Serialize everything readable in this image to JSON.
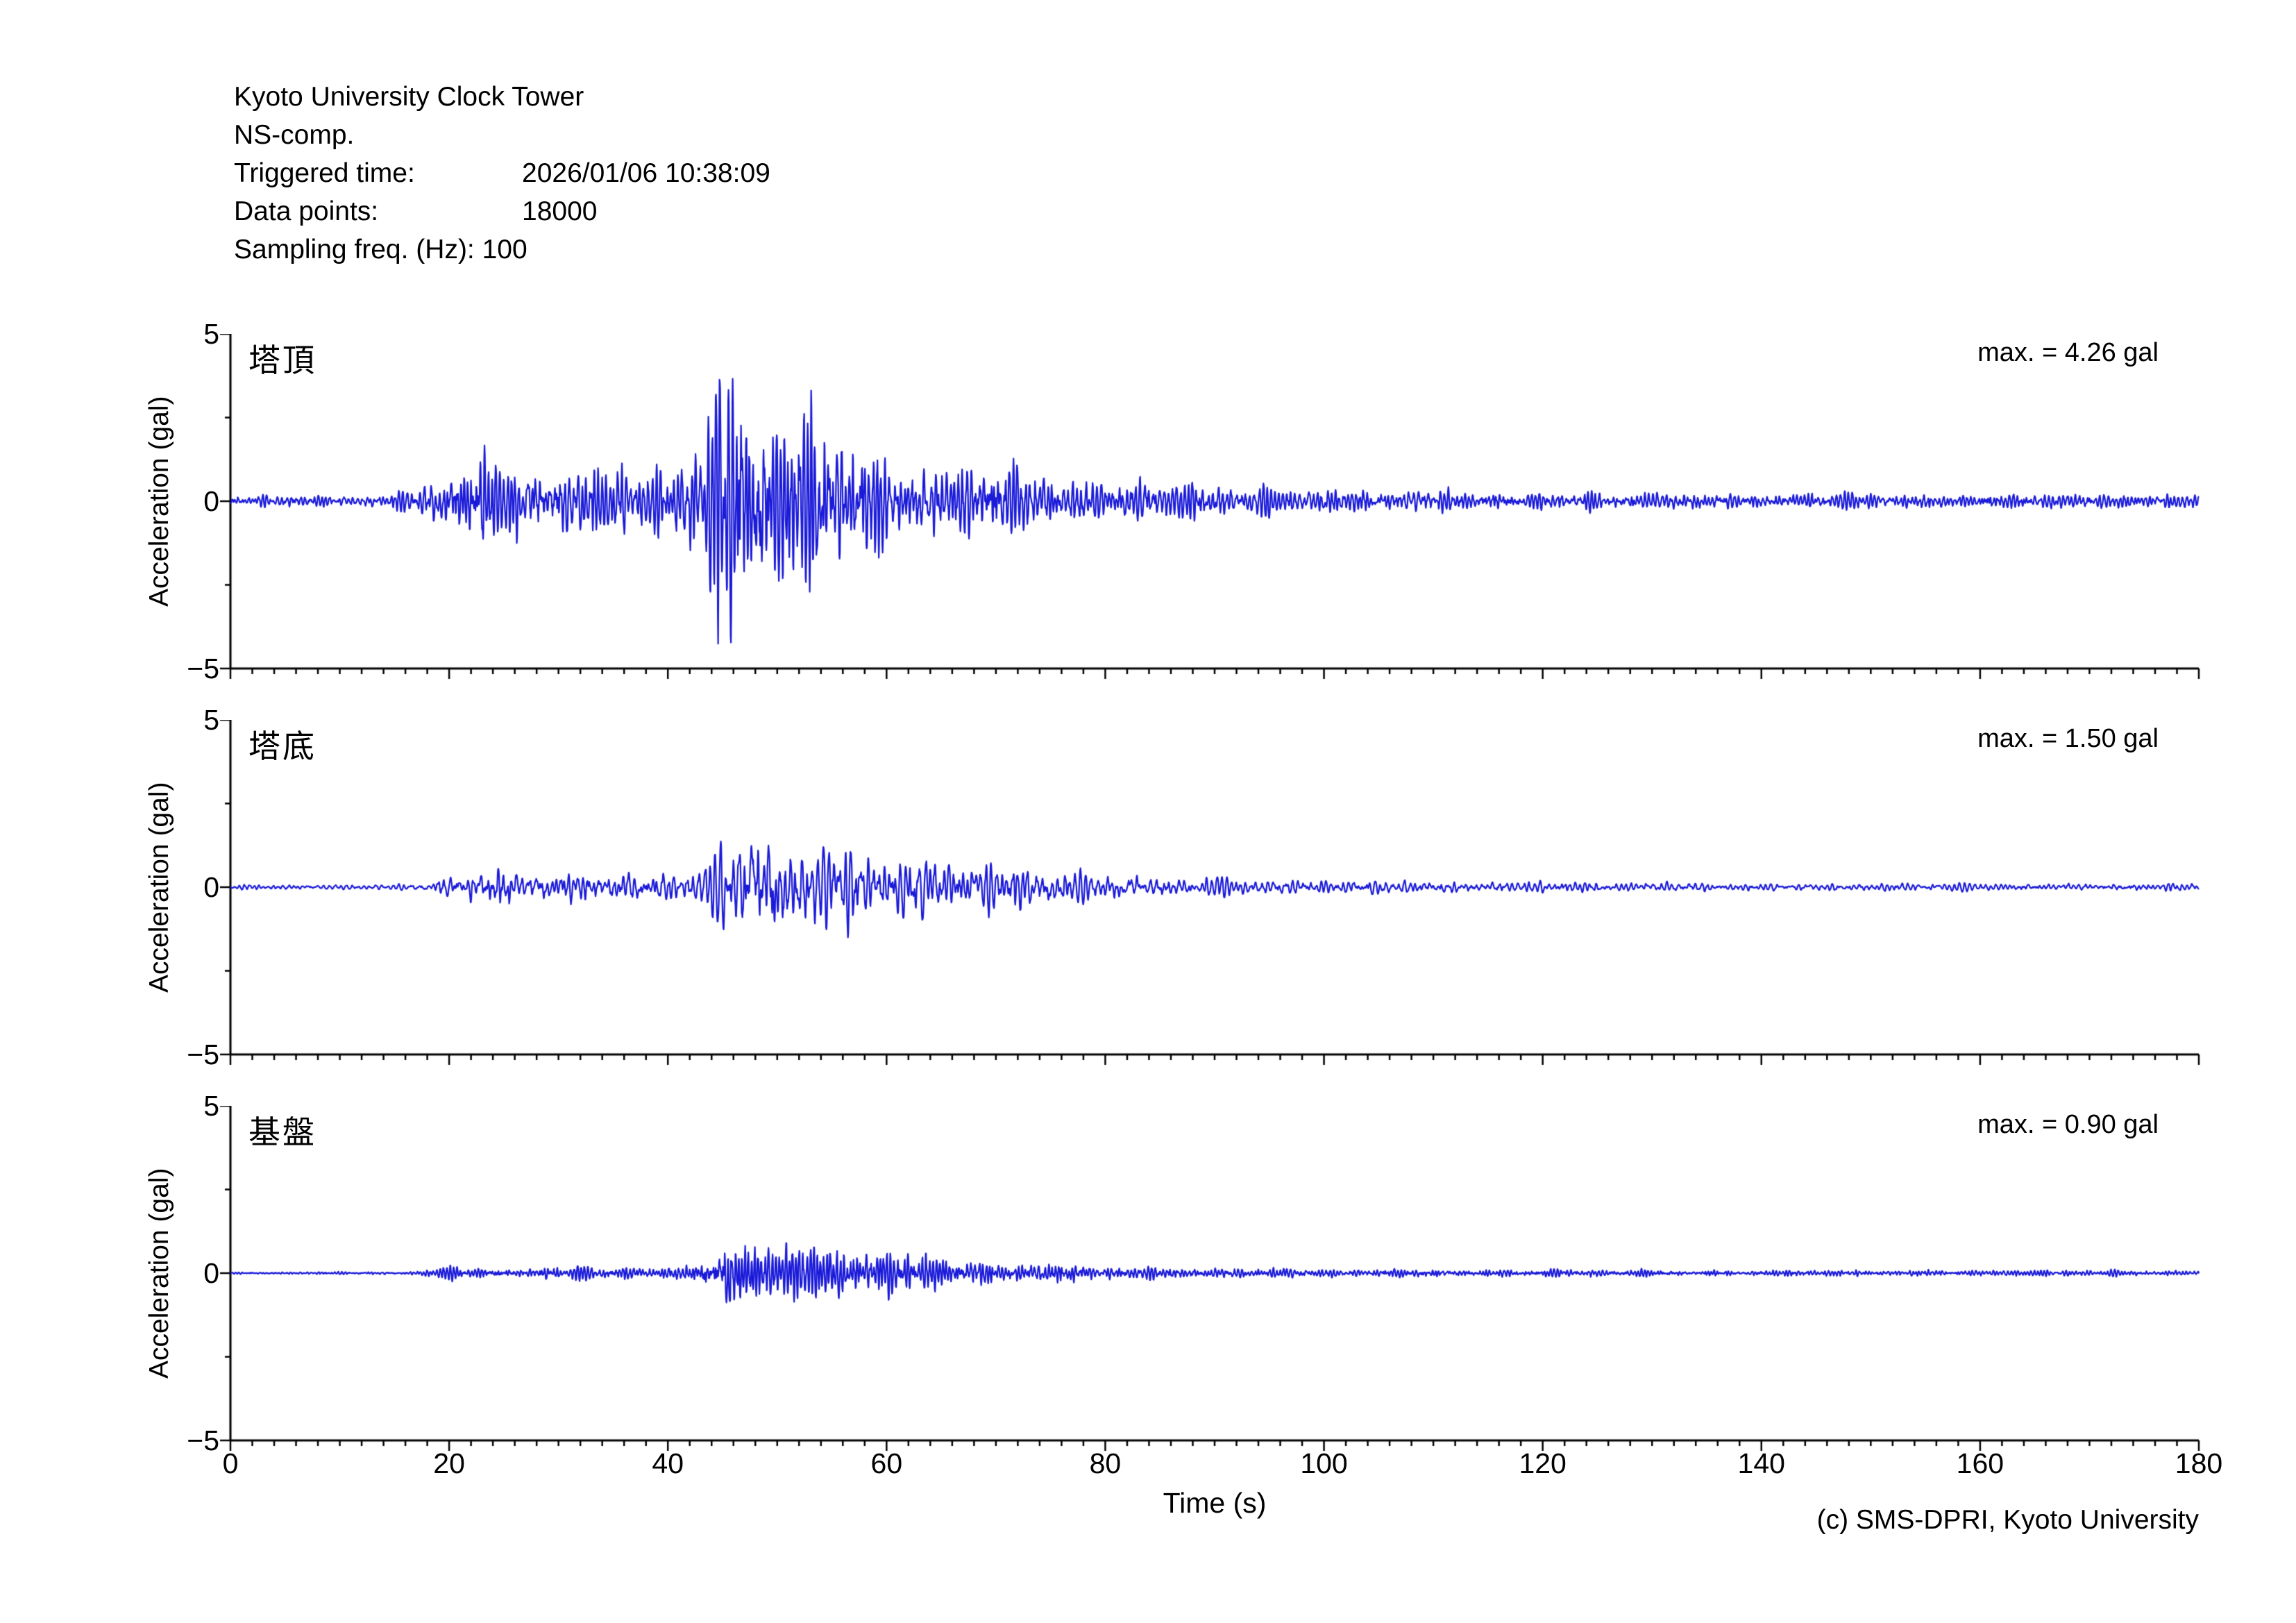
{
  "header": {
    "station": "Kyoto University Clock Tower",
    "component": "NS-comp.",
    "triggered_label": "Triggered time:",
    "triggered_value": "2026/01/06 10:38:09",
    "datapoints_label": "Data points:",
    "datapoints_value": "18000",
    "sampling_line": "Sampling freq. (Hz): 100"
  },
  "footer": {
    "copyright": "(c) SMS-DPRI, Kyoto University"
  },
  "chart_data": {
    "type": "line",
    "xlabel": "Time (s)",
    "ylabel": "Acceleration (gal)",
    "xlim": [
      0,
      180
    ],
    "ylim": [
      -5,
      5
    ],
    "xticks": [
      0,
      20,
      40,
      60,
      80,
      100,
      120,
      140,
      160,
      180
    ],
    "x_minor_step": 2,
    "yticks": [
      5,
      0,
      -5
    ],
    "ytick_labels": [
      "5",
      "0",
      "−5"
    ],
    "yticks_minor": [
      2.5,
      -2.5
    ],
    "sampling_hz": 100,
    "n_points": 18000,
    "line_color": "#1a1ad9",
    "axis_color": "#000000",
    "traces": [
      {
        "label": "塔頂",
        "max_label": "max. = 4.26 gal",
        "max_gal": 4.26,
        "color": "#1a1ad9",
        "seed": 7,
        "f1": 2.8,
        "f2": 5.5,
        "envelope": [
          [
            0,
            0.04
          ],
          [
            14,
            0.04
          ],
          [
            17,
            0.09
          ],
          [
            19,
            0.16
          ],
          [
            21,
            0.24
          ],
          [
            23,
            0.3
          ],
          [
            25,
            0.22
          ],
          [
            27,
            0.26
          ],
          [
            29,
            0.23
          ],
          [
            31,
            0.27
          ],
          [
            33,
            0.24
          ],
          [
            35,
            0.26
          ],
          [
            37,
            0.22
          ],
          [
            39,
            0.24
          ],
          [
            41,
            0.26
          ],
          [
            43,
            0.34
          ],
          [
            44,
            0.55
          ],
          [
            45,
            0.9
          ],
          [
            46,
            1.0
          ],
          [
            47,
            0.92
          ],
          [
            48,
            0.96
          ],
          [
            49,
            0.75
          ],
          [
            50,
            0.6
          ],
          [
            51,
            0.52
          ],
          [
            52,
            0.6
          ],
          [
            53,
            0.68
          ],
          [
            54,
            0.6
          ],
          [
            55,
            0.5
          ],
          [
            56,
            0.55
          ],
          [
            57,
            0.45
          ],
          [
            58,
            0.42
          ],
          [
            59,
            0.38
          ],
          [
            60,
            0.33
          ],
          [
            62,
            0.27
          ],
          [
            64,
            0.25
          ],
          [
            66,
            0.3
          ],
          [
            68,
            0.33
          ],
          [
            70,
            0.28
          ],
          [
            72,
            0.22
          ],
          [
            74,
            0.18
          ],
          [
            76,
            0.16
          ],
          [
            78,
            0.17
          ],
          [
            80,
            0.15
          ],
          [
            83,
            0.13
          ],
          [
            86,
            0.15
          ],
          [
            89,
            0.12
          ],
          [
            92,
            0.1
          ],
          [
            95,
            0.09
          ],
          [
            100,
            0.08
          ],
          [
            105,
            0.075
          ],
          [
            110,
            0.07
          ],
          [
            120,
            0.06
          ],
          [
            130,
            0.055
          ],
          [
            140,
            0.05
          ],
          [
            150,
            0.05
          ],
          [
            160,
            0.048
          ],
          [
            170,
            0.046
          ],
          [
            180,
            0.045
          ]
        ]
      },
      {
        "label": "塔底",
        "max_label": "max. = 1.50 gal",
        "max_gal": 1.5,
        "color": "#1a1ad9",
        "seed": 13,
        "f1": 2.1,
        "f2": 4.6,
        "envelope": [
          [
            0,
            0.03
          ],
          [
            16,
            0.03
          ],
          [
            18,
            0.08
          ],
          [
            20,
            0.14
          ],
          [
            22,
            0.18
          ],
          [
            24,
            0.3
          ],
          [
            25,
            0.35
          ],
          [
            26,
            0.2
          ],
          [
            28,
            0.18
          ],
          [
            30,
            0.22
          ],
          [
            32,
            0.25
          ],
          [
            34,
            0.22
          ],
          [
            36,
            0.2
          ],
          [
            38,
            0.18
          ],
          [
            40,
            0.2
          ],
          [
            42,
            0.22
          ],
          [
            44,
            0.35
          ],
          [
            46,
            0.6
          ],
          [
            47,
            0.75
          ],
          [
            48,
            1.0
          ],
          [
            49,
            0.8
          ],
          [
            50,
            0.85
          ],
          [
            51,
            0.7
          ],
          [
            52,
            0.6
          ],
          [
            53,
            0.65
          ],
          [
            54,
            0.55
          ],
          [
            55,
            0.5
          ],
          [
            56,
            0.6
          ],
          [
            57,
            0.65
          ],
          [
            58,
            0.5
          ],
          [
            59,
            0.45
          ],
          [
            60,
            0.42
          ],
          [
            61,
            0.48
          ],
          [
            62,
            0.45
          ],
          [
            63,
            0.4
          ],
          [
            64,
            0.42
          ],
          [
            66,
            0.38
          ],
          [
            68,
            0.35
          ],
          [
            70,
            0.3
          ],
          [
            72,
            0.28
          ],
          [
            74,
            0.25
          ],
          [
            76,
            0.22
          ],
          [
            78,
            0.2
          ],
          [
            80,
            0.18
          ],
          [
            83,
            0.16
          ],
          [
            86,
            0.14
          ],
          [
            90,
            0.12
          ],
          [
            95,
            0.1
          ],
          [
            100,
            0.09
          ],
          [
            110,
            0.08
          ],
          [
            120,
            0.07
          ],
          [
            130,
            0.06
          ],
          [
            140,
            0.055
          ],
          [
            150,
            0.05
          ],
          [
            160,
            0.05
          ],
          [
            170,
            0.048
          ],
          [
            180,
            0.047
          ]
        ]
      },
      {
        "label": "基盤",
        "max_label": "max. = 0.90 gal",
        "max_gal": 0.9,
        "color": "#1a1ad9",
        "seed": 21,
        "f1": 3.2,
        "f2": 6.5,
        "envelope": [
          [
            0,
            0.025
          ],
          [
            16,
            0.028
          ],
          [
            18,
            0.07
          ],
          [
            20,
            0.1
          ],
          [
            22,
            0.11
          ],
          [
            24,
            0.1
          ],
          [
            26,
            0.11
          ],
          [
            28,
            0.12
          ],
          [
            30,
            0.13
          ],
          [
            32,
            0.12
          ],
          [
            34,
            0.13
          ],
          [
            36,
            0.14
          ],
          [
            38,
            0.12
          ],
          [
            40,
            0.13
          ],
          [
            42,
            0.16
          ],
          [
            44,
            0.3
          ],
          [
            45,
            0.75
          ],
          [
            46,
            1.0
          ],
          [
            47,
            0.8
          ],
          [
            48,
            0.6
          ],
          [
            49,
            0.55
          ],
          [
            50,
            0.5
          ],
          [
            51,
            0.55
          ],
          [
            52,
            0.5
          ],
          [
            53,
            0.45
          ],
          [
            54,
            0.5
          ],
          [
            55,
            0.45
          ],
          [
            56,
            0.5
          ],
          [
            57,
            0.42
          ],
          [
            58,
            0.4
          ],
          [
            60,
            0.38
          ],
          [
            62,
            0.42
          ],
          [
            64,
            0.38
          ],
          [
            66,
            0.32
          ],
          [
            68,
            0.3
          ],
          [
            70,
            0.26
          ],
          [
            72,
            0.22
          ],
          [
            74,
            0.2
          ],
          [
            76,
            0.18
          ],
          [
            78,
            0.16
          ],
          [
            80,
            0.15
          ],
          [
            84,
            0.13
          ],
          [
            88,
            0.12
          ],
          [
            92,
            0.1
          ],
          [
            96,
            0.09
          ],
          [
            100,
            0.085
          ],
          [
            110,
            0.075
          ],
          [
            120,
            0.07
          ],
          [
            130,
            0.065
          ],
          [
            140,
            0.06
          ],
          [
            150,
            0.058
          ],
          [
            160,
            0.055
          ],
          [
            170,
            0.052
          ],
          [
            180,
            0.05
          ]
        ]
      }
    ]
  }
}
